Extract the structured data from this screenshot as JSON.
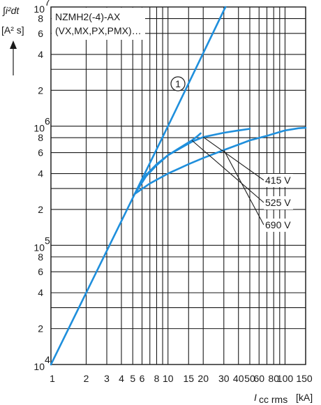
{
  "chart_data": {
    "type": "line",
    "title_lines": [
      "NZMH2(-4)-AX",
      "(VX,MX,PX,PMX)…"
    ],
    "ylabel_lines": [
      "∫i²dt",
      "[A² s]"
    ],
    "xlabel_main": "I",
    "xlabel_sub": "cc rms",
    "xlabel_unit": "[kA]",
    "x_scale": "log",
    "y_scale": "log",
    "xlim": [
      1,
      150
    ],
    "ylim": [
      10000,
      10000000
    ],
    "x_ticks": [
      {
        "value": 1,
        "label": "1"
      },
      {
        "value": 2,
        "label": "2"
      },
      {
        "value": 3,
        "label": "3"
      },
      {
        "value": 4,
        "label": "4"
      },
      {
        "value": 5,
        "label": "5"
      },
      {
        "value": 6,
        "label": "6"
      },
      {
        "value": 8,
        "label": "8"
      },
      {
        "value": 10,
        "label": "10"
      },
      {
        "value": 15,
        "label": "15"
      },
      {
        "value": 20,
        "label": "20"
      },
      {
        "value": 30,
        "label": "30"
      },
      {
        "value": 40,
        "label": "40"
      },
      {
        "value": 50,
        "label": "50"
      },
      {
        "value": 60,
        "label": "60"
      },
      {
        "value": 80,
        "label": "80"
      },
      {
        "value": 100,
        "label": "100"
      },
      {
        "value": 150,
        "label": "150"
      }
    ],
    "x_grid": [
      1,
      2,
      3,
      4,
      5,
      6,
      7,
      8,
      9,
      10,
      15,
      20,
      30,
      40,
      50,
      60,
      70,
      80,
      90,
      100,
      150
    ],
    "y_ticks": [
      {
        "value": 10000,
        "mantissa": "10",
        "exp": "4"
      },
      {
        "value": 20000,
        "mantissa": "2",
        "exp": ""
      },
      {
        "value": 40000,
        "mantissa": "4",
        "exp": ""
      },
      {
        "value": 60000,
        "mantissa": "6",
        "exp": ""
      },
      {
        "value": 80000,
        "mantissa": "8",
        "exp": ""
      },
      {
        "value": 100000,
        "mantissa": "10",
        "exp": "5"
      },
      {
        "value": 200000,
        "mantissa": "2",
        "exp": ""
      },
      {
        "value": 400000,
        "mantissa": "4",
        "exp": ""
      },
      {
        "value": 600000,
        "mantissa": "6",
        "exp": ""
      },
      {
        "value": 800000,
        "mantissa": "8",
        "exp": ""
      },
      {
        "value": 1000000,
        "mantissa": "10",
        "exp": "6"
      },
      {
        "value": 2000000,
        "mantissa": "2",
        "exp": ""
      },
      {
        "value": 4000000,
        "mantissa": "4",
        "exp": ""
      },
      {
        "value": 6000000,
        "mantissa": "6",
        "exp": ""
      },
      {
        "value": 8000000,
        "mantissa": "8",
        "exp": ""
      },
      {
        "value": 10000000,
        "mantissa": "10",
        "exp": "7"
      }
    ],
    "y_grid": [
      10000,
      20000,
      30000,
      40000,
      60000,
      80000,
      100000,
      200000,
      300000,
      400000,
      600000,
      800000,
      1000000,
      2000000,
      3000000,
      4000000,
      6000000,
      8000000,
      10000000
    ],
    "series": [
      {
        "name": "①",
        "values": [
          [
            1,
            10000
          ],
          [
            5.2,
            270000
          ],
          [
            10,
            1000000
          ],
          [
            31,
            10000000
          ]
        ]
      },
      {
        "name": "415 V",
        "values": [
          [
            5.2,
            270000
          ],
          [
            6.5,
            380000
          ],
          [
            8,
            470000
          ],
          [
            10,
            570000
          ],
          [
            13,
            660000
          ],
          [
            16,
            740000
          ],
          [
            20,
            810000
          ],
          [
            30,
            880000
          ],
          [
            40,
            920000
          ],
          [
            50,
            950000
          ]
        ]
      },
      {
        "name": "525 V",
        "values": [
          [
            5.2,
            270000
          ],
          [
            6.5,
            390000
          ],
          [
            8,
            480000
          ],
          [
            10,
            570000
          ],
          [
            13,
            670000
          ],
          [
            16,
            760000
          ],
          [
            18,
            830000
          ],
          [
            19,
            870000
          ]
        ]
      },
      {
        "name": "690 V",
        "values": [
          [
            5.2,
            270000
          ],
          [
            7,
            330000
          ],
          [
            10,
            400000
          ],
          [
            15,
            480000
          ],
          [
            20,
            540000
          ],
          [
            30,
            630000
          ],
          [
            40,
            700000
          ],
          [
            50,
            760000
          ],
          [
            70,
            830000
          ],
          [
            100,
            920000
          ],
          [
            130,
            960000
          ],
          [
            150,
            970000
          ]
        ]
      }
    ],
    "curve_marker": "1",
    "legend_labels": [
      "415 V",
      "525 V",
      "690 V"
    ],
    "grid": true,
    "line_color": "#1f8fdc"
  }
}
